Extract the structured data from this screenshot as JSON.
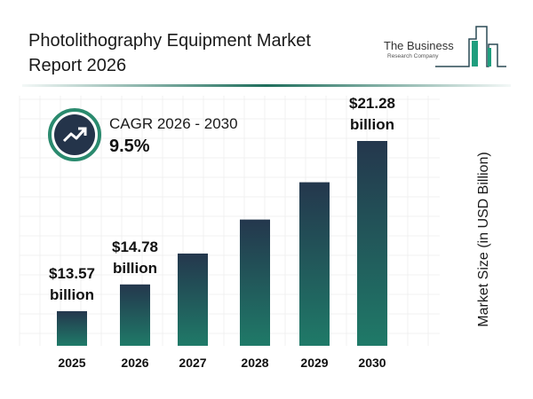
{
  "header": {
    "title": "Photolithography Equipment Market Report 2026"
  },
  "logo": {
    "line1": "The Business",
    "line2": "Research Company",
    "accent": "#1f9e7e"
  },
  "cagr": {
    "label": "CAGR 2026 - 2030",
    "value": "9.5%",
    "icon": "trend-up-arrow-icon"
  },
  "colors": {
    "bar_top": "#24374d",
    "bar_bottom": "#1f7a68"
  },
  "chart_data": {
    "type": "bar",
    "categories": [
      "2025",
      "2026",
      "2027",
      "2028",
      "2029",
      "2030"
    ],
    "values": [
      13.57,
      14.78,
      16.18,
      17.72,
      19.41,
      21.28
    ],
    "data_labels": [
      {
        "index": 0,
        "line1": "$13.57",
        "line2": "billion"
      },
      {
        "index": 1,
        "line1": "$14.78",
        "line2": "billion"
      },
      {
        "index": 5,
        "line1": "$21.28",
        "line2": "billion"
      }
    ],
    "xlabel": "",
    "ylabel": "Market Size (in USD Billion)",
    "grid": true,
    "y_axis_ticks_shown": false
  }
}
